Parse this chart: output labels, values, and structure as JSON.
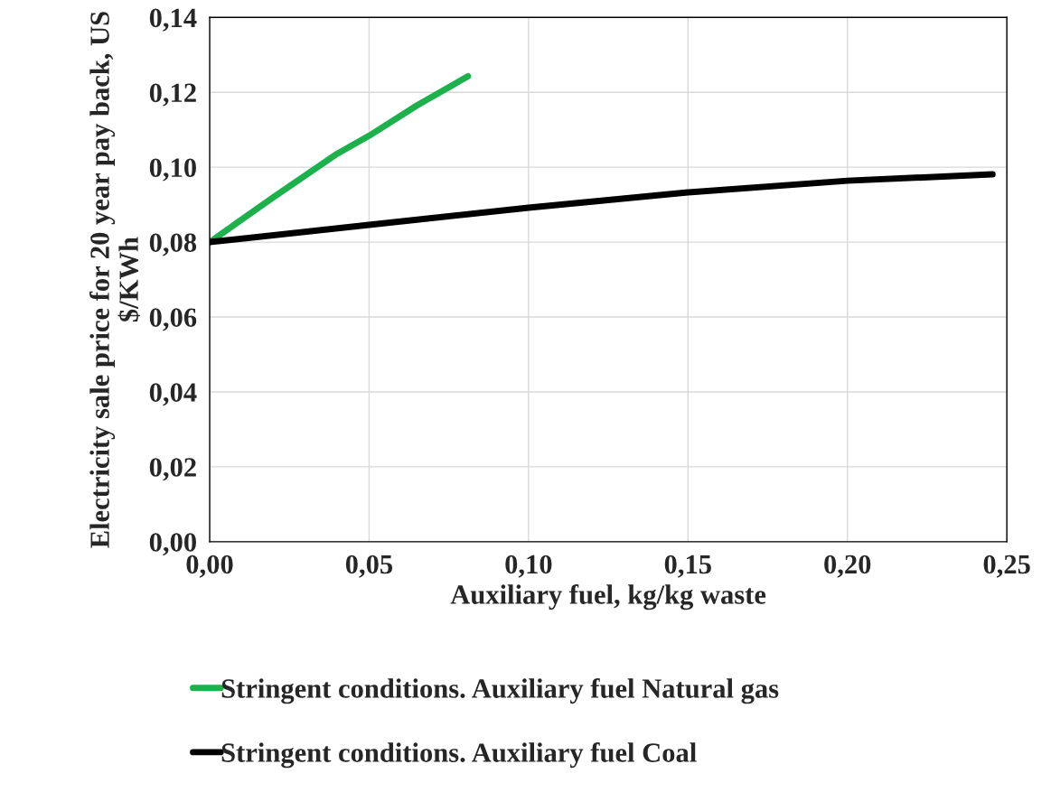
{
  "chart_data": {
    "type": "line",
    "xlabel": "Auxiliary fuel, kg/kg waste",
    "ylabel": "Electricity sale price for 20 year pay back, US $/KWh",
    "xlim": [
      0,
      0.25
    ],
    "ylim": [
      0,
      0.14
    ],
    "xticks": [
      {
        "value": 0,
        "label": "0,00"
      },
      {
        "value": 0.05,
        "label": "0,05"
      },
      {
        "value": 0.1,
        "label": "0,10"
      },
      {
        "value": 0.15,
        "label": "0,15"
      },
      {
        "value": 0.2,
        "label": "0,20"
      },
      {
        "value": 0.25,
        "label": "0,25"
      }
    ],
    "yticks": [
      {
        "value": 0,
        "label": "0,00"
      },
      {
        "value": 0.02,
        "label": "0,02"
      },
      {
        "value": 0.04,
        "label": "0,04"
      },
      {
        "value": 0.06,
        "label": "0,06"
      },
      {
        "value": 0.08,
        "label": "0,08"
      },
      {
        "value": 0.1,
        "label": "0,10"
      },
      {
        "value": 0.12,
        "label": "0,12"
      },
      {
        "value": 0.14,
        "label": "0,14"
      }
    ],
    "series": [
      {
        "name": "Stringent conditions. Auxiliary fuel Natural gas",
        "color": "#1db14b",
        "x": [
          0,
          0.02,
          0.04,
          0.05,
          0.065,
          0.081
        ],
        "values": [
          0.08,
          0.092,
          0.1036,
          0.1084,
          0.1165,
          0.1243
        ]
      },
      {
        "name": "Stringent conditions. Auxiliary fuel Coal",
        "color": "#000000",
        "x": [
          0,
          0.05,
          0.1,
          0.15,
          0.2,
          0.2455
        ],
        "values": [
          0.08,
          0.0846,
          0.0892,
          0.0933,
          0.0964,
          0.0981
        ]
      }
    ],
    "grid": true,
    "legend": "bottom",
    "marker": "none",
    "line_style": "solid"
  }
}
